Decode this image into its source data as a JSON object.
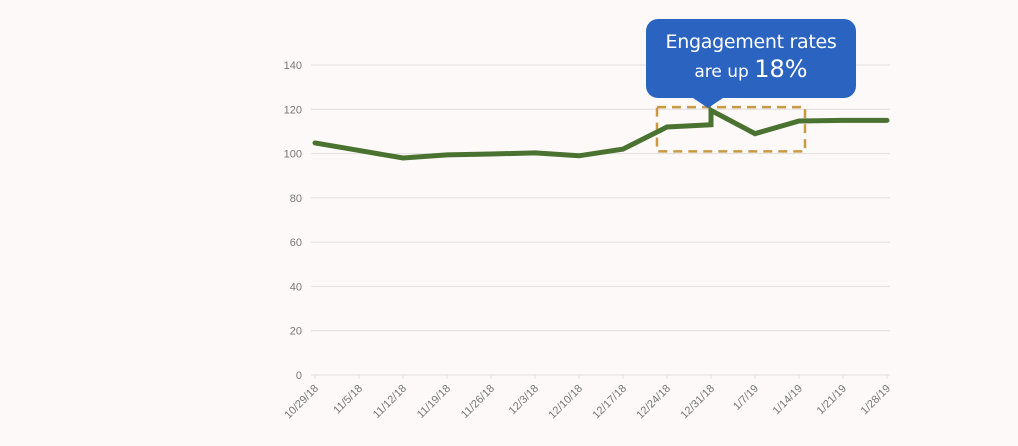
{
  "chart_data": {
    "type": "line",
    "title": "",
    "xlabel": "",
    "ylabel": "",
    "ylim": [
      0,
      140
    ],
    "yticks": [
      0,
      20,
      40,
      60,
      80,
      100,
      120,
      140
    ],
    "grid": true,
    "categories": [
      "10/29/18",
      "11/5/18",
      "11/12/18",
      "11/19/18",
      "11/26/18",
      "12/3/18",
      "12/10/18",
      "12/17/18",
      "12/24/18",
      "12/31/18",
      "1/7/19",
      "1/14/19",
      "1/21/19",
      "1/28/19"
    ],
    "series": [
      {
        "color": "#4a7230",
        "points": [
          {
            "x": "10/29/18",
            "y": 104.8
          },
          {
            "x": "11/5/18",
            "y": 101.4
          },
          {
            "x": "11/12/18",
            "y": 98
          },
          {
            "x": "11/19/18",
            "y": 99.4
          },
          {
            "x": "11/26/18",
            "y": 99.8
          },
          {
            "x": "12/3/18",
            "y": 100.3
          },
          {
            "x": "12/10/18",
            "y": 99
          },
          {
            "x": "12/17/18",
            "y": 102
          },
          {
            "x": "12/24/18",
            "y": 112
          },
          {
            "x": "12/31/18",
            "y": 113
          },
          {
            "x": "12/31/18",
            "y": 119.5
          },
          {
            "x": "1/7/19",
            "y": 109
          },
          {
            "x": "1/14/19",
            "y": 114.7
          },
          {
            "x": "1/21/19",
            "y": 115
          },
          {
            "x": "1/28/19",
            "y": 115
          }
        ]
      }
    ],
    "annotation": {
      "line1": "Engagement rates",
      "line2_prefix": "are up ",
      "line2_value": "18%",
      "color": "#2a64c0",
      "highlight_box": {
        "x_from": "12/24/18",
        "x_to": "1/14/19",
        "y_from": 101,
        "y_to": 121,
        "color": "#c99a45",
        "style": "dashed"
      }
    }
  }
}
